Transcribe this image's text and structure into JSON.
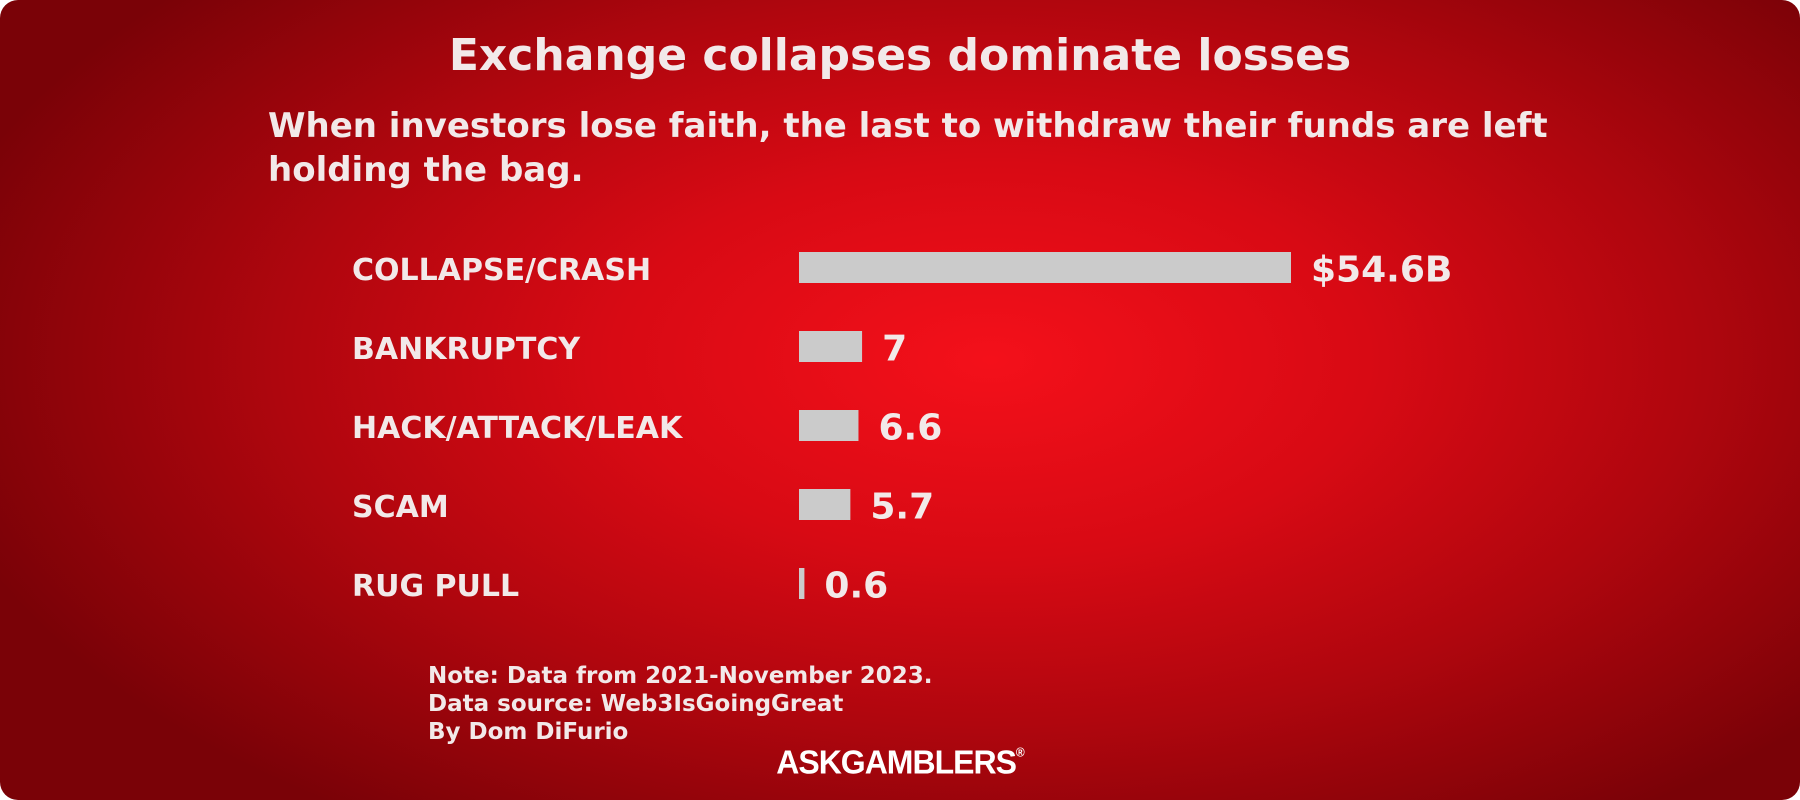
{
  "chart_data": {
    "type": "bar",
    "orientation": "horizontal",
    "title": "Exchange collapses dominate losses",
    "subtitle": "When investors lose faith, the last to withdraw their funds are left holding the bag.",
    "categories": [
      "COLLAPSE/CRASH",
      "BANKRUPTCY",
      "HACK/ATTACK/LEAK",
      "SCAM",
      "RUG PULL"
    ],
    "values": [
      54.6,
      7,
      6.6,
      5.7,
      0.6
    ],
    "value_labels": [
      "$54.6B",
      "7",
      "6.6",
      "5.7",
      "0.6"
    ],
    "unit": "billion USD",
    "xlim": [
      0,
      54.6
    ],
    "grid": false,
    "legend": "none",
    "bar_color": "#cbcbcb",
    "background_color": "#e60d16"
  },
  "notes": {
    "note": "Note: Data from 2021-November 2023.",
    "source": "Data source: Web3IsGoingGreat",
    "byline": "By Dom DiFurio"
  },
  "brand": {
    "logo_text": "ASKGAMBLERS",
    "logo_mark": "®"
  }
}
